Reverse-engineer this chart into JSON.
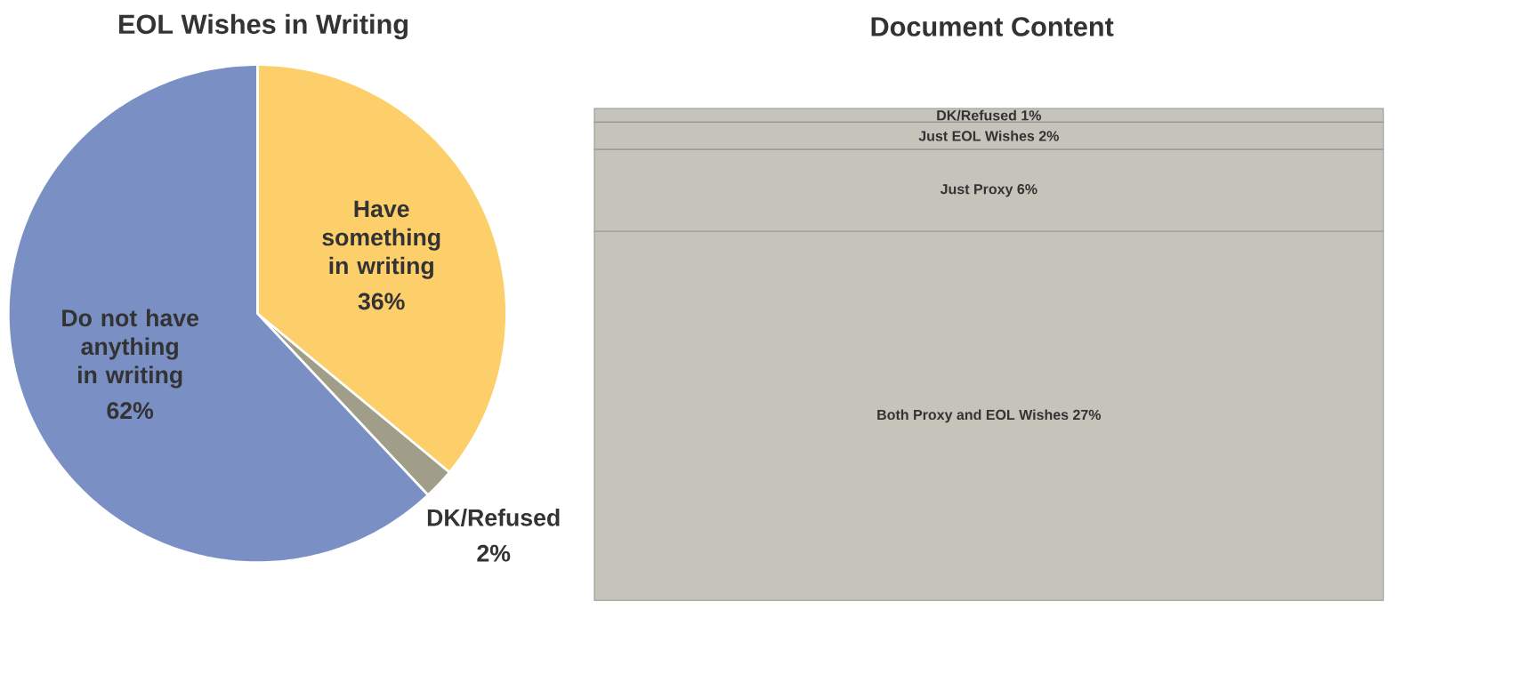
{
  "chart_data": [
    {
      "type": "pie",
      "title": "EOL Wishes in Writing",
      "categories": [
        "Have something in writing",
        "DK/Refused",
        "Do not have anything in writing"
      ],
      "values": [
        36,
        2,
        62
      ],
      "colors": [
        "#fdcf6a",
        "#a09e88",
        "#7a90c4"
      ],
      "value_labels": [
        "36%",
        "2%",
        "62%"
      ]
    },
    {
      "type": "bar",
      "title": "Document Content",
      "categories": [
        null
      ],
      "stacked": true,
      "tick_labels": false,
      "series": [
        {
          "name": "Both Proxy and EOL Wishes",
          "color": "#c6c3bb",
          "values": [
            27
          ],
          "value_labels": [
            "27%"
          ]
        },
        {
          "name": "Just Proxy",
          "color": "#c6c3bb",
          "values": [
            6
          ],
          "value_labels": [
            "6%"
          ]
        },
        {
          "name": "Just EOL Wishes",
          "color": "#c6c3bb",
          "values": [
            2
          ],
          "value_labels": [
            "2%"
          ]
        },
        {
          "name": "DK/Refused",
          "color": "#c6c3bb",
          "values": [
            1
          ],
          "value_labels": [
            "1%"
          ]
        }
      ]
    }
  ]
}
